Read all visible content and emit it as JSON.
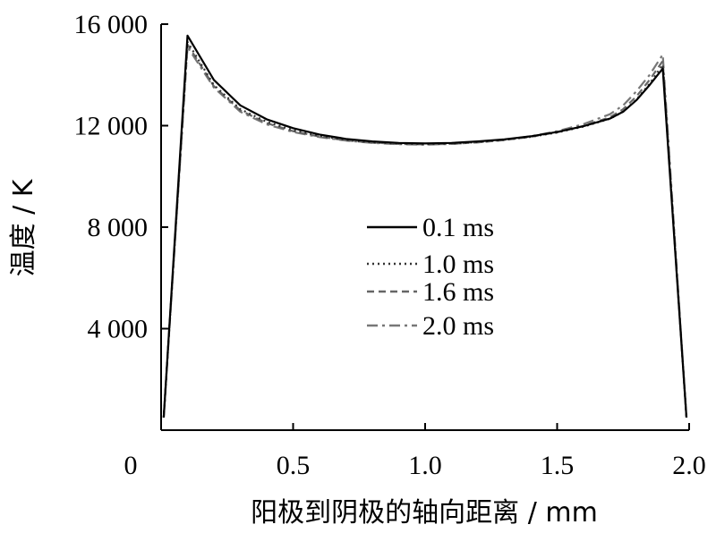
{
  "chart_data": {
    "type": "line",
    "xlabel": "阳极到阴极的轴向距离 / mm",
    "ylabel": "温度 / K",
    "xlim": [
      0,
      2.0
    ],
    "ylim": [
      0,
      16000
    ],
    "x_ticks": [
      {
        "value": 0,
        "label": "0"
      },
      {
        "value": 0.5,
        "label": "0.5"
      },
      {
        "value": 1.0,
        "label": "1.0"
      },
      {
        "value": 1.5,
        "label": "1.5"
      },
      {
        "value": 2.0,
        "label": "2.0"
      }
    ],
    "y_ticks": [
      {
        "value": 4000,
        "label": "4 000"
      },
      {
        "value": 8000,
        "label": "8 000"
      },
      {
        "value": 12000,
        "label": "12 000"
      },
      {
        "value": 16000,
        "label": "16 000"
      }
    ],
    "grid": false,
    "legend_position": "center",
    "series": [
      {
        "name": "0.1 ms",
        "color": "#000000",
        "dash": "solid",
        "x": [
          0.01,
          0.1,
          0.2,
          0.3,
          0.4,
          0.5,
          0.6,
          0.7,
          0.8,
          0.9,
          1.0,
          1.1,
          1.2,
          1.3,
          1.4,
          1.5,
          1.6,
          1.7,
          1.75,
          1.8,
          1.85,
          1.9,
          1.99
        ],
        "values": [
          500,
          15550,
          13800,
          12800,
          12250,
          11900,
          11650,
          11480,
          11380,
          11320,
          11300,
          11320,
          11380,
          11460,
          11580,
          11750,
          11980,
          12280,
          12550,
          13000,
          13600,
          14250,
          500
        ]
      },
      {
        "name": "1.0 ms",
        "color": "#333333",
        "dash": "dot",
        "x": [
          0.01,
          0.1,
          0.2,
          0.3,
          0.4,
          0.5,
          0.6,
          0.7,
          0.8,
          0.9,
          1.0,
          1.1,
          1.2,
          1.3,
          1.4,
          1.5,
          1.6,
          1.7,
          1.75,
          1.8,
          1.85,
          1.9,
          1.99
        ],
        "values": [
          500,
          15300,
          13600,
          12650,
          12150,
          11820,
          11600,
          11440,
          11340,
          11290,
          11270,
          11290,
          11350,
          11440,
          11560,
          11730,
          11960,
          12270,
          12550,
          13020,
          13650,
          14400,
          500
        ]
      },
      {
        "name": "1.6 ms",
        "color": "#666666",
        "dash": "dash",
        "x": [
          0.01,
          0.1,
          0.2,
          0.3,
          0.4,
          0.5,
          0.6,
          0.7,
          0.8,
          0.9,
          1.0,
          1.1,
          1.2,
          1.3,
          1.4,
          1.5,
          1.6,
          1.7,
          1.75,
          1.8,
          1.85,
          1.9,
          1.99
        ],
        "values": [
          500,
          15200,
          13550,
          12600,
          12100,
          11780,
          11570,
          11420,
          11330,
          11280,
          11260,
          11280,
          11340,
          11430,
          11560,
          11740,
          11990,
          12330,
          12650,
          13150,
          13800,
          14550,
          500
        ]
      },
      {
        "name": "2.0 ms",
        "color": "#777777",
        "dash": "dashdot",
        "x": [
          0.01,
          0.1,
          0.2,
          0.3,
          0.4,
          0.5,
          0.6,
          0.7,
          0.8,
          0.9,
          1.0,
          1.1,
          1.2,
          1.3,
          1.4,
          1.5,
          1.6,
          1.7,
          1.75,
          1.8,
          1.85,
          1.9,
          1.99
        ],
        "values": [
          500,
          15100,
          13500,
          12550,
          12050,
          11750,
          11550,
          11410,
          11320,
          11270,
          11250,
          11280,
          11340,
          11440,
          11580,
          11780,
          12060,
          12450,
          12800,
          13350,
          14000,
          14800,
          500
        ]
      }
    ]
  }
}
